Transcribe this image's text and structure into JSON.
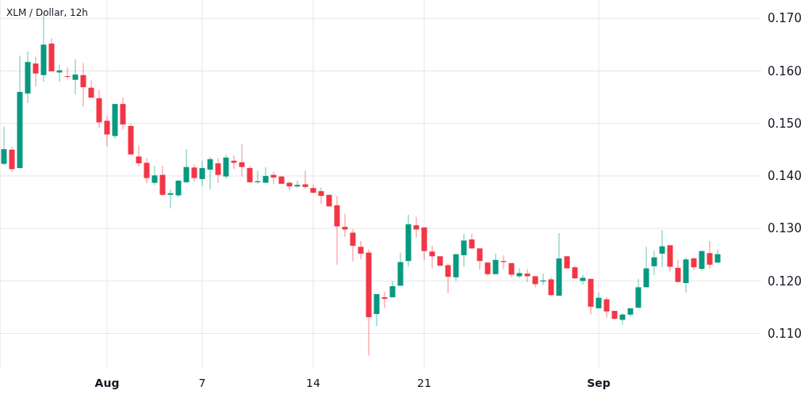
{
  "chart_data": {
    "type": "candlestick",
    "title": "XLM / Dollar, 12h",
    "categories": [
      null,
      null,
      null,
      null,
      null,
      null,
      null,
      null,
      null,
      null,
      null,
      null,
      null,
      "Aug",
      null,
      null,
      null,
      null,
      null,
      null,
      null,
      null,
      null,
      null,
      null,
      "7",
      null,
      null,
      null,
      null,
      null,
      null,
      null,
      null,
      null,
      null,
      null,
      null,
      null,
      "14",
      null,
      null,
      null,
      null,
      null,
      null,
      null,
      null,
      null,
      null,
      null,
      null,
      null,
      "21",
      null,
      null,
      null,
      null,
      null,
      null,
      null,
      null,
      null,
      null,
      null,
      null,
      null,
      null,
      null,
      null,
      null,
      null,
      null,
      null,
      null,
      "Sep",
      null,
      null,
      null,
      null,
      null,
      null,
      null,
      null,
      null,
      null,
      null,
      null,
      null,
      null,
      null
    ],
    "ohlc": [
      [
        0.1423,
        0.1494,
        0.1421,
        0.1451
      ],
      [
        0.145,
        0.1455,
        0.1408,
        0.1413
      ],
      [
        0.1415,
        0.1629,
        0.1414,
        0.156
      ],
      [
        0.1557,
        0.1637,
        0.1539,
        0.1617
      ],
      [
        0.1614,
        0.1627,
        0.157,
        0.1595
      ],
      [
        0.1592,
        0.171,
        0.1579,
        0.165
      ],
      [
        0.1652,
        0.1662,
        0.1599,
        0.1599
      ],
      [
        0.1597,
        0.1612,
        0.1579,
        0.1601
      ],
      [
        0.159,
        0.1607,
        0.1584,
        0.1589
      ],
      [
        0.1583,
        0.1622,
        0.1555,
        0.1593
      ],
      [
        0.1592,
        0.1615,
        0.1532,
        0.1569
      ],
      [
        0.1568,
        0.1582,
        0.1549,
        0.1549
      ],
      [
        0.1548,
        0.1564,
        0.1491,
        0.1502
      ],
      [
        0.1505,
        0.1514,
        0.1456,
        0.1479
      ],
      [
        0.1476,
        0.1537,
        0.1471,
        0.1537
      ],
      [
        0.1537,
        0.1549,
        0.1489,
        0.1498
      ],
      [
        0.1495,
        0.1499,
        0.1439,
        0.1441
      ],
      [
        0.1437,
        0.1458,
        0.1418,
        0.1424
      ],
      [
        0.1425,
        0.1434,
        0.1386,
        0.1396
      ],
      [
        0.1387,
        0.1419,
        0.1383,
        0.1401
      ],
      [
        0.1402,
        0.1419,
        0.1362,
        0.1364
      ],
      [
        0.1364,
        0.1374,
        0.1338,
        0.1367
      ],
      [
        0.1363,
        0.1392,
        0.136,
        0.1391
      ],
      [
        0.1388,
        0.1451,
        0.1386,
        0.1417
      ],
      [
        0.1416,
        0.1422,
        0.1389,
        0.1396
      ],
      [
        0.1394,
        0.1429,
        0.1381,
        0.1415
      ],
      [
        0.1412,
        0.1436,
        0.1374,
        0.1432
      ],
      [
        0.1424,
        0.1434,
        0.1387,
        0.1402
      ],
      [
        0.1399,
        0.144,
        0.1395,
        0.1435
      ],
      [
        0.1429,
        0.1439,
        0.1413,
        0.1425
      ],
      [
        0.1426,
        0.146,
        0.1399,
        0.1417
      ],
      [
        0.1415,
        0.1418,
        0.1387,
        0.1388
      ],
      [
        0.1388,
        0.141,
        0.1385,
        0.139
      ],
      [
        0.1387,
        0.1417,
        0.1387,
        0.14
      ],
      [
        0.1402,
        0.1408,
        0.1384,
        0.1397
      ],
      [
        0.1399,
        0.1399,
        0.1385,
        0.1385
      ],
      [
        0.1387,
        0.139,
        0.1372,
        0.138
      ],
      [
        0.138,
        0.1391,
        0.1377,
        0.1383
      ],
      [
        0.1384,
        0.141,
        0.1376,
        0.1379
      ],
      [
        0.1377,
        0.1383,
        0.1367,
        0.1368
      ],
      [
        0.1371,
        0.1378,
        0.1347,
        0.1362
      ],
      [
        0.1364,
        0.1364,
        0.1342,
        0.1342
      ],
      [
        0.1344,
        0.1362,
        0.1231,
        0.1304
      ],
      [
        0.1303,
        0.1328,
        0.1284,
        0.1298
      ],
      [
        0.1292,
        0.1299,
        0.1237,
        0.1267
      ],
      [
        0.1265,
        0.1276,
        0.1241,
        0.1252
      ],
      [
        0.1254,
        0.126,
        0.1058,
        0.1131
      ],
      [
        0.1137,
        0.1175,
        0.1114,
        0.1175
      ],
      [
        0.1169,
        0.1179,
        0.1148,
        0.1166
      ],
      [
        0.1169,
        0.12,
        0.1169,
        0.119
      ],
      [
        0.1191,
        0.1254,
        0.1191,
        0.1236
      ],
      [
        0.1238,
        0.1326,
        0.1227,
        0.1308
      ],
      [
        0.1306,
        0.1322,
        0.1282,
        0.1298
      ],
      [
        0.1302,
        0.1302,
        0.124,
        0.1257
      ],
      [
        0.1256,
        0.1267,
        0.1224,
        0.1247
      ],
      [
        0.1247,
        0.1247,
        0.1228,
        0.1229
      ],
      [
        0.123,
        0.1233,
        0.1177,
        0.1208
      ],
      [
        0.1207,
        0.1251,
        0.12,
        0.1251
      ],
      [
        0.1249,
        0.129,
        0.1227,
        0.1277
      ],
      [
        0.1279,
        0.129,
        0.1262,
        0.1262
      ],
      [
        0.1262,
        0.1262,
        0.1221,
        0.1238
      ],
      [
        0.1235,
        0.1236,
        0.1209,
        0.1213
      ],
      [
        0.1213,
        0.1252,
        0.1213,
        0.124
      ],
      [
        0.1238,
        0.1249,
        0.1223,
        0.1236
      ],
      [
        0.1234,
        0.1234,
        0.1207,
        0.1212
      ],
      [
        0.1209,
        0.1224,
        0.1206,
        0.1215
      ],
      [
        0.1214,
        0.1223,
        0.1198,
        0.1209
      ],
      [
        0.1209,
        0.1209,
        0.1188,
        0.1194
      ],
      [
        0.1199,
        0.1214,
        0.1192,
        0.1201
      ],
      [
        0.1203,
        0.1207,
        0.1171,
        0.1173
      ],
      [
        0.1172,
        0.1291,
        0.1171,
        0.1243
      ],
      [
        0.1247,
        0.1248,
        0.1224,
        0.1224
      ],
      [
        0.1226,
        0.1229,
        0.1204,
        0.1205
      ],
      [
        0.12,
        0.1212,
        0.1193,
        0.1206
      ],
      [
        0.1204,
        0.1204,
        0.1136,
        0.1151
      ],
      [
        0.1148,
        0.1178,
        0.1148,
        0.1168
      ],
      [
        0.1165,
        0.1169,
        0.113,
        0.1142
      ],
      [
        0.1143,
        0.1143,
        0.1126,
        0.1128
      ],
      [
        0.1126,
        0.1139,
        0.1117,
        0.1136
      ],
      [
        0.1136,
        0.1148,
        0.1132,
        0.1148
      ],
      [
        0.1149,
        0.1204,
        0.1149,
        0.1188
      ],
      [
        0.1188,
        0.1265,
        0.1188,
        0.1224
      ],
      [
        0.1228,
        0.1258,
        0.1211,
        0.1245
      ],
      [
        0.1252,
        0.1297,
        0.1226,
        0.1266
      ],
      [
        0.1268,
        0.1268,
        0.1218,
        0.1227
      ],
      [
        0.1225,
        0.124,
        0.1198,
        0.1198
      ],
      [
        0.1196,
        0.1245,
        0.1178,
        0.1241
      ],
      [
        0.1243,
        0.1245,
        0.1221,
        0.1226
      ],
      [
        0.1223,
        0.1257,
        0.1219,
        0.1257
      ],
      [
        0.1253,
        0.1276,
        0.1223,
        0.1231
      ],
      [
        0.1235,
        0.126,
        0.1235,
        0.1251
      ]
    ],
    "colors": [
      "#089981",
      "#f23645",
      "#089981",
      "#089981",
      "#f23645",
      "#089981",
      "#f23645",
      "#089981",
      "#f23645",
      "#089981",
      "#f23645",
      "#f23645",
      "#f23645",
      "#f23645",
      "#089981",
      "#f23645",
      "#f23645",
      "#f23645",
      "#f23645",
      "#089981",
      "#f23645",
      "#089981",
      "#089981",
      "#089981",
      "#f23645",
      "#089981",
      "#089981",
      "#f23645",
      "#089981",
      "#f23645",
      "#f23645",
      "#f23645",
      "#089981",
      "#089981",
      "#f23645",
      "#f23645",
      "#f23645",
      "#089981",
      "#f23645",
      "#f23645",
      "#f23645",
      "#f23645",
      "#f23645",
      "#f23645",
      "#f23645",
      "#f23645",
      "#f23645",
      "#089981",
      "#f23645",
      "#089981",
      "#089981",
      "#089981",
      "#f23645",
      "#f23645",
      "#f23645",
      "#f23645",
      "#f23645",
      "#089981",
      "#089981",
      "#f23645",
      "#f23645",
      "#f23645",
      "#089981",
      "#f23645",
      "#f23645",
      "#089981",
      "#f23645",
      "#f23645",
      "#089981",
      "#f23645",
      "#089981",
      "#f23645",
      "#f23645",
      "#089981",
      "#f23645",
      "#089981",
      "#f23645",
      "#f23645",
      "#089981",
      "#089981",
      "#089981",
      "#089981",
      "#089981",
      "#089981",
      "#f23645",
      "#f23645",
      "#089981",
      "#f23645",
      "#089981",
      "#f23645",
      "#089981"
    ],
    "ylim": [
      0.1033,
      0.1735
    ],
    "yticks": [
      {
        "value": 0.11,
        "label": "0.110"
      },
      {
        "value": 0.12,
        "label": "0.120"
      },
      {
        "value": 0.13,
        "label": "0.130"
      },
      {
        "value": 0.14,
        "label": "0.140"
      },
      {
        "value": 0.15,
        "label": "0.150"
      },
      {
        "value": 0.16,
        "label": "0.160"
      },
      {
        "value": 0.17,
        "label": "0.170"
      }
    ],
    "grid": true
  }
}
